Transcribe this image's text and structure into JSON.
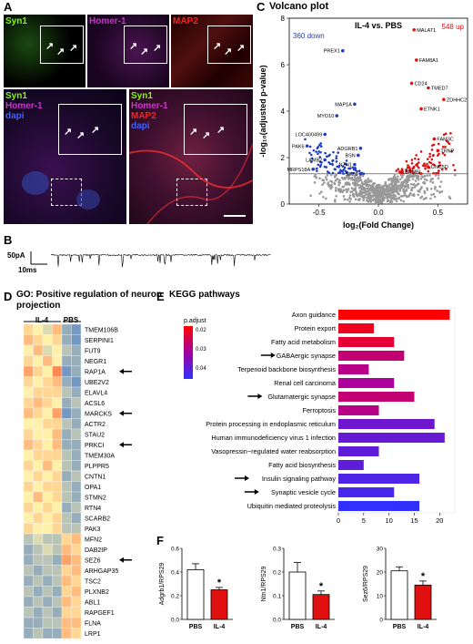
{
  "panel_a": {
    "letter": "A",
    "top_labels": [
      "Syn1",
      "Homer-1",
      "MAP2"
    ],
    "bl_labels": [
      "Syn1",
      "Homer-1",
      "dapi"
    ],
    "br_labels": [
      "Syn1",
      "Homer-1",
      "MAP2",
      "dapi"
    ],
    "colors": {
      "syn1": "#7CFC00",
      "homer": "#CC33CC",
      "map2": "#FF2020",
      "dapi": "#4060FF"
    }
  },
  "panel_b": {
    "letter": "B",
    "scale_y": "50pA",
    "scale_x": "10ms"
  },
  "panel_c": {
    "letter": "C",
    "title": "Volcano plot",
    "comparison": "IL-4 vs. PBS",
    "down_label": "360 down",
    "up_label": "548 up",
    "xlabel": "log₂(Fold Change)",
    "ylabel": "-log₁₀(adjusted p-value)",
    "xticks": [
      "-0.5",
      "0.0",
      "0.5"
    ],
    "yticks": [
      "0",
      "2",
      "4",
      "6",
      "8"
    ],
    "genes_down": [
      "PREX1",
      "MAP1A",
      "MYO10",
      "LOC400499",
      "PAK6",
      "LAMB2",
      "MRPS18A",
      "ADGRB1",
      "BSN",
      "NTN1",
      "SEZ6"
    ],
    "genes_up": [
      "MALAT1",
      "FAM8A1",
      "TMED7",
      "CD24",
      "ZDHHC2",
      "ETNK1",
      "FAM3C",
      "TRNP",
      "UNC5D",
      "BAMBI"
    ]
  },
  "chart_data": [
    {
      "type": "scatter",
      "title": "Volcano plot",
      "xlabel": "log2(Fold Change)",
      "ylabel": "-log10(adjusted p-value)",
      "xlim": [
        -0.75,
        0.75
      ],
      "ylim": [
        0,
        8
      ],
      "threshold_y": 1.3,
      "labeled_points": [
        {
          "gene": "PREX1",
          "x": -0.3,
          "y": 6.6
        },
        {
          "gene": "MALAT1",
          "x": 0.3,
          "y": 7.5
        },
        {
          "gene": "FAM8A1",
          "x": 0.32,
          "y": 6.2
        },
        {
          "gene": "CD24",
          "x": 0.28,
          "y": 5.2
        },
        {
          "gene": "TMED7",
          "x": 0.42,
          "y": 5.0
        },
        {
          "gene": "ZDHHC2",
          "x": 0.55,
          "y": 4.5
        },
        {
          "gene": "ETNK1",
          "x": 0.36,
          "y": 4.1
        },
        {
          "gene": "MAP1A",
          "x": -0.2,
          "y": 4.3
        },
        {
          "gene": "MYO10",
          "x": -0.35,
          "y": 3.8
        },
        {
          "gene": "LOC400499",
          "x": -0.45,
          "y": 3.0
        },
        {
          "gene": "PAK6",
          "x": -0.6,
          "y": 2.5
        },
        {
          "gene": "ADGRB1",
          "x": -0.15,
          "y": 2.4
        },
        {
          "gene": "BSN",
          "x": -0.17,
          "y": 2.1
        },
        {
          "gene": "FAM3C",
          "x": 0.47,
          "y": 2.8
        },
        {
          "gene": "TRNP",
          "x": 0.5,
          "y": 2.3
        },
        {
          "gene": "LAMB2",
          "x": -0.45,
          "y": 1.9
        },
        {
          "gene": "NTN1",
          "x": -0.2,
          "y": 1.7
        },
        {
          "gene": "UNC5D",
          "x": 0.42,
          "y": 1.6
        },
        {
          "gene": "MRPS18A",
          "x": -0.55,
          "y": 1.5
        },
        {
          "gene": "SEZ6",
          "x": -0.15,
          "y": 1.3
        },
        {
          "gene": "BAMBI",
          "x": 0.2,
          "y": 1.4
        }
      ]
    },
    {
      "type": "bar",
      "title": "KEGG pathways",
      "categories": [
        "Axon guidance",
        "Protein export",
        "Fatty acid metabolism",
        "GABAergic synapse",
        "Terpenoid backbone biosynthesis",
        "Renal cell carcinoma",
        "Glutamatergic synapse",
        "Ferroptosis",
        "Protein processing in endoplasmic reticulum",
        "Human immunodeficiency virus 1 infection",
        "Vasopressin−regulated water reabsorption",
        "Fatty acid biosynthesis",
        "Insulin signaling pathway",
        "Synaptic vesicle cycle",
        "Ubiquitin mediated proteolysis"
      ],
      "values": [
        22,
        7,
        11,
        13,
        6,
        11,
        15,
        8,
        19,
        21,
        8,
        5,
        16,
        11,
        16
      ],
      "p_adjust": [
        0.015,
        0.018,
        0.02,
        0.026,
        0.028,
        0.03,
        0.026,
        0.028,
        0.038,
        0.039,
        0.04,
        0.04,
        0.042,
        0.043,
        0.046
      ],
      "xticks": [
        "0",
        "5",
        "10",
        "15",
        "20"
      ],
      "xlim": [
        0,
        23
      ],
      "legend_title": "p.adjust",
      "legend_ticks": [
        "0.02",
        "0.03",
        "0.04"
      ]
    },
    {
      "type": "bar",
      "categories": [
        "PBS",
        "IL-4"
      ],
      "values": [
        0.42,
        0.25
      ],
      "errors": [
        0.05,
        0.02
      ],
      "ylabel": "Adgrb1/RPS29",
      "ylim": [
        0,
        0.6
      ],
      "yticks": [
        "0.0",
        "0.2",
        "0.4",
        "0.6"
      ]
    },
    {
      "type": "bar",
      "categories": [
        "PBS",
        "IL-4"
      ],
      "values": [
        0.2,
        0.105
      ],
      "errors": [
        0.04,
        0.015
      ],
      "ylabel": "Ntn1/RPS29",
      "ylim": [
        0,
        0.3
      ],
      "yticks": [
        "0.0",
        "0.1",
        "0.2",
        "0.3"
      ]
    },
    {
      "type": "bar",
      "categories": [
        "PBS",
        "IL-4"
      ],
      "values": [
        20.5,
        14.5
      ],
      "errors": [
        1.7,
        1.7
      ],
      "ylabel": "Sez6/RPS29",
      "ylim": [
        0,
        30
      ],
      "yticks": [
        "0",
        "10",
        "20",
        "30"
      ]
    }
  ],
  "panel_d": {
    "letter": "D",
    "title": "GO: Positive regulation of neuron projection",
    "group_il4": "IL-4",
    "group_pbs": "PBS",
    "genes": [
      "TMEM106B",
      "SERPINI1",
      "FUT9",
      "NEGR1",
      "RAP1A",
      "UBE2V2",
      "ELAVL4",
      "ACSL6",
      "MARCKS",
      "ACTR2",
      "STAU2",
      "PRKCI",
      "TMEM30A",
      "PLPPR5",
      "CNTN1",
      "OPA1",
      "STMN2",
      "RTN4",
      "SCARB2",
      "PAK3",
      "MFN2",
      "DAB2IP",
      "SEZ6",
      "ARHGAP35",
      "TSC2",
      "PLXNB2",
      "ABL1",
      "RAPGEF1",
      "FLNA",
      "LRP1"
    ],
    "arrow_genes": [
      "RAP1A",
      "MARCKS",
      "PRKCI",
      "SEZ6"
    ],
    "heat": [
      [
        0.6,
        0.5,
        0.4,
        0.7,
        0.2,
        0.1
      ],
      [
        0.7,
        0.6,
        0.5,
        0.6,
        0.2,
        0.1
      ],
      [
        0.5,
        0.7,
        0.4,
        0.5,
        0.3,
        0.2
      ],
      [
        0.6,
        0.5,
        0.7,
        0.5,
        0.2,
        0.2
      ],
      [
        0.8,
        0.6,
        0.5,
        0.9,
        0.1,
        0.2
      ],
      [
        0.6,
        0.5,
        0.6,
        0.7,
        0.2,
        0.1
      ],
      [
        0.5,
        0.6,
        0.6,
        0.6,
        0.3,
        0.2
      ],
      [
        0.6,
        0.7,
        0.6,
        0.5,
        0.2,
        0.3
      ],
      [
        0.7,
        0.6,
        0.5,
        0.8,
        0.1,
        0.2
      ],
      [
        0.5,
        0.5,
        0.6,
        0.6,
        0.3,
        0.2
      ],
      [
        0.6,
        0.5,
        0.5,
        0.7,
        0.2,
        0.3
      ],
      [
        0.7,
        0.6,
        0.5,
        0.7,
        0.2,
        0.2
      ],
      [
        0.5,
        0.6,
        0.6,
        0.6,
        0.3,
        0.2
      ],
      [
        0.6,
        0.5,
        0.7,
        0.5,
        0.3,
        0.2
      ],
      [
        0.5,
        0.6,
        0.5,
        0.6,
        0.2,
        0.3
      ],
      [
        0.6,
        0.5,
        0.6,
        0.6,
        0.3,
        0.2
      ],
      [
        0.5,
        0.7,
        0.5,
        0.6,
        0.3,
        0.2
      ],
      [
        0.6,
        0.5,
        0.6,
        0.5,
        0.2,
        0.3
      ],
      [
        0.5,
        0.6,
        0.5,
        0.6,
        0.3,
        0.2
      ],
      [
        0.6,
        0.5,
        0.5,
        0.6,
        0.3,
        0.3
      ],
      [
        0.3,
        0.4,
        0.3,
        0.3,
        0.6,
        0.7
      ],
      [
        0.2,
        0.3,
        0.4,
        0.3,
        0.7,
        0.6
      ],
      [
        0.2,
        0.3,
        0.3,
        0.2,
        0.8,
        0.7
      ],
      [
        0.3,
        0.2,
        0.3,
        0.3,
        0.6,
        0.7
      ],
      [
        0.2,
        0.3,
        0.2,
        0.3,
        0.7,
        0.6
      ],
      [
        0.3,
        0.2,
        0.3,
        0.2,
        0.6,
        0.7
      ],
      [
        0.2,
        0.3,
        0.2,
        0.3,
        0.7,
        0.6
      ],
      [
        0.3,
        0.2,
        0.3,
        0.2,
        0.6,
        0.6
      ],
      [
        0.2,
        0.2,
        0.3,
        0.3,
        0.7,
        0.7
      ],
      [
        0.2,
        0.3,
        0.2,
        0.2,
        0.7,
        0.6
      ]
    ]
  },
  "panel_e": {
    "letter": "E",
    "title": "KEGG pathways",
    "arrow_pathways": [
      3,
      6,
      12,
      13
    ]
  },
  "panel_f": {
    "letter": "F",
    "sig": "*"
  }
}
